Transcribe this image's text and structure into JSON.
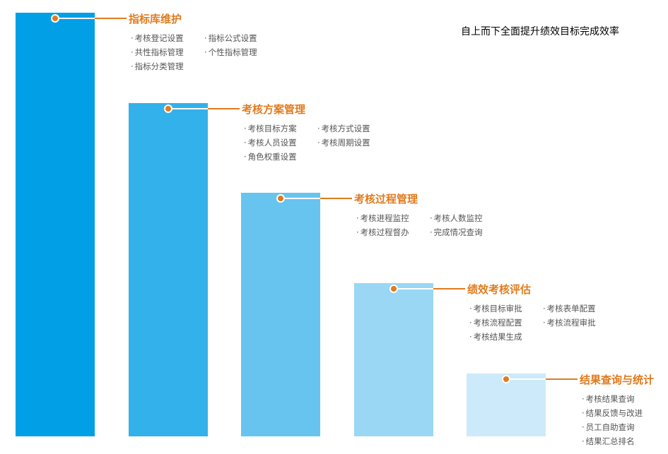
{
  "headline": "自上而下全面提升绩效目标完成效率",
  "colors": {
    "accent": "#e07b1e",
    "bars": [
      "#009fe6",
      "#33b1ea",
      "#66c4ef",
      "#99d7f4",
      "#cceaf9"
    ]
  },
  "stages": [
    {
      "title": "指标库维护",
      "items": [
        "考核登记设置",
        "指标公式设置",
        "共性指标管理",
        "个性指标管理",
        "指标分类管理"
      ]
    },
    {
      "title": "考核方案管理",
      "items": [
        "考核目标方案",
        "考核方式设置",
        "考核人员设置",
        "考核周期设置",
        "角色权重设置"
      ]
    },
    {
      "title": "考核过程管理",
      "items": [
        "考核进程监控",
        "考核人数监控",
        "考核过程督办",
        "完成情况查询"
      ]
    },
    {
      "title": "绩效考核评估",
      "items": [
        "考核目标审批",
        "考核表单配置",
        "考核流程配置",
        "考核流程审批",
        "考核结果生成"
      ]
    },
    {
      "title": "结果查询与统计",
      "items": [
        "考核结果查询",
        "结果反馈与改进",
        "员工自助查询",
        "结果汇总排名"
      ]
    }
  ]
}
